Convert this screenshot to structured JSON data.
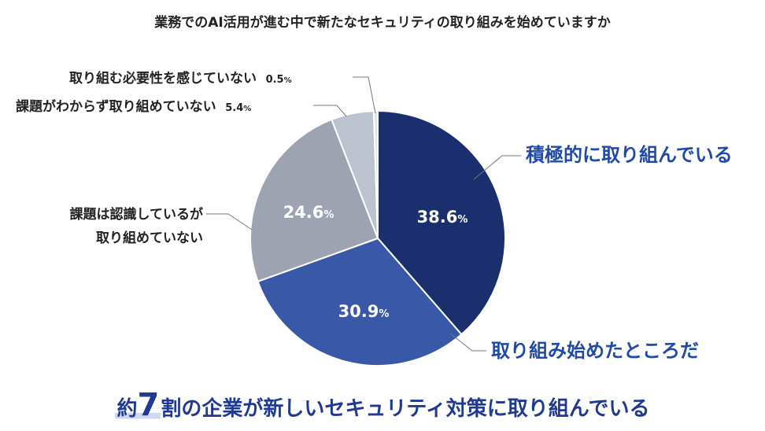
{
  "chart_data": {
    "type": "pie",
    "title": "業務でのAI活用が進む中で新たなセキュリティの取り組みを始めていますか",
    "slices": [
      {
        "label": "積極的に取り組んでいる",
        "value": 38.6,
        "value_text": "38.6",
        "color": "#1b2f6e"
      },
      {
        "label": "取り組み始めたところだ",
        "value": 30.9,
        "value_text": "30.9",
        "color": "#3a58a8"
      },
      {
        "label": "課題は認識しているが取り組めていない",
        "value": 24.6,
        "value_text": "24.6",
        "color": "#9ea3b1"
      },
      {
        "label": "課題がわからず取り組めていない",
        "value": 5.4,
        "value_text": "5.4",
        "color": "#bcc2ce"
      },
      {
        "label": "取り組む必要性を感じていない",
        "value": 0.5,
        "value_text": "0.5",
        "color": "#dfe2e8"
      }
    ],
    "unit": "%",
    "start": "top",
    "direction": "clockwise"
  },
  "labels": {
    "s0": "積極的に取り組んでいる",
    "s1": "取り組み始めたところだ",
    "s2_line1": "課題は認識しているが",
    "s2_line2": "取り組めていない",
    "s3": "課題がわからず取り組めていない",
    "s4": "取り組む必要性を感じていない"
  },
  "summary": {
    "prefix": "約",
    "number": "7",
    "suffix": "割の企業が新しいセキュリティ対策に取り組んでいる"
  }
}
